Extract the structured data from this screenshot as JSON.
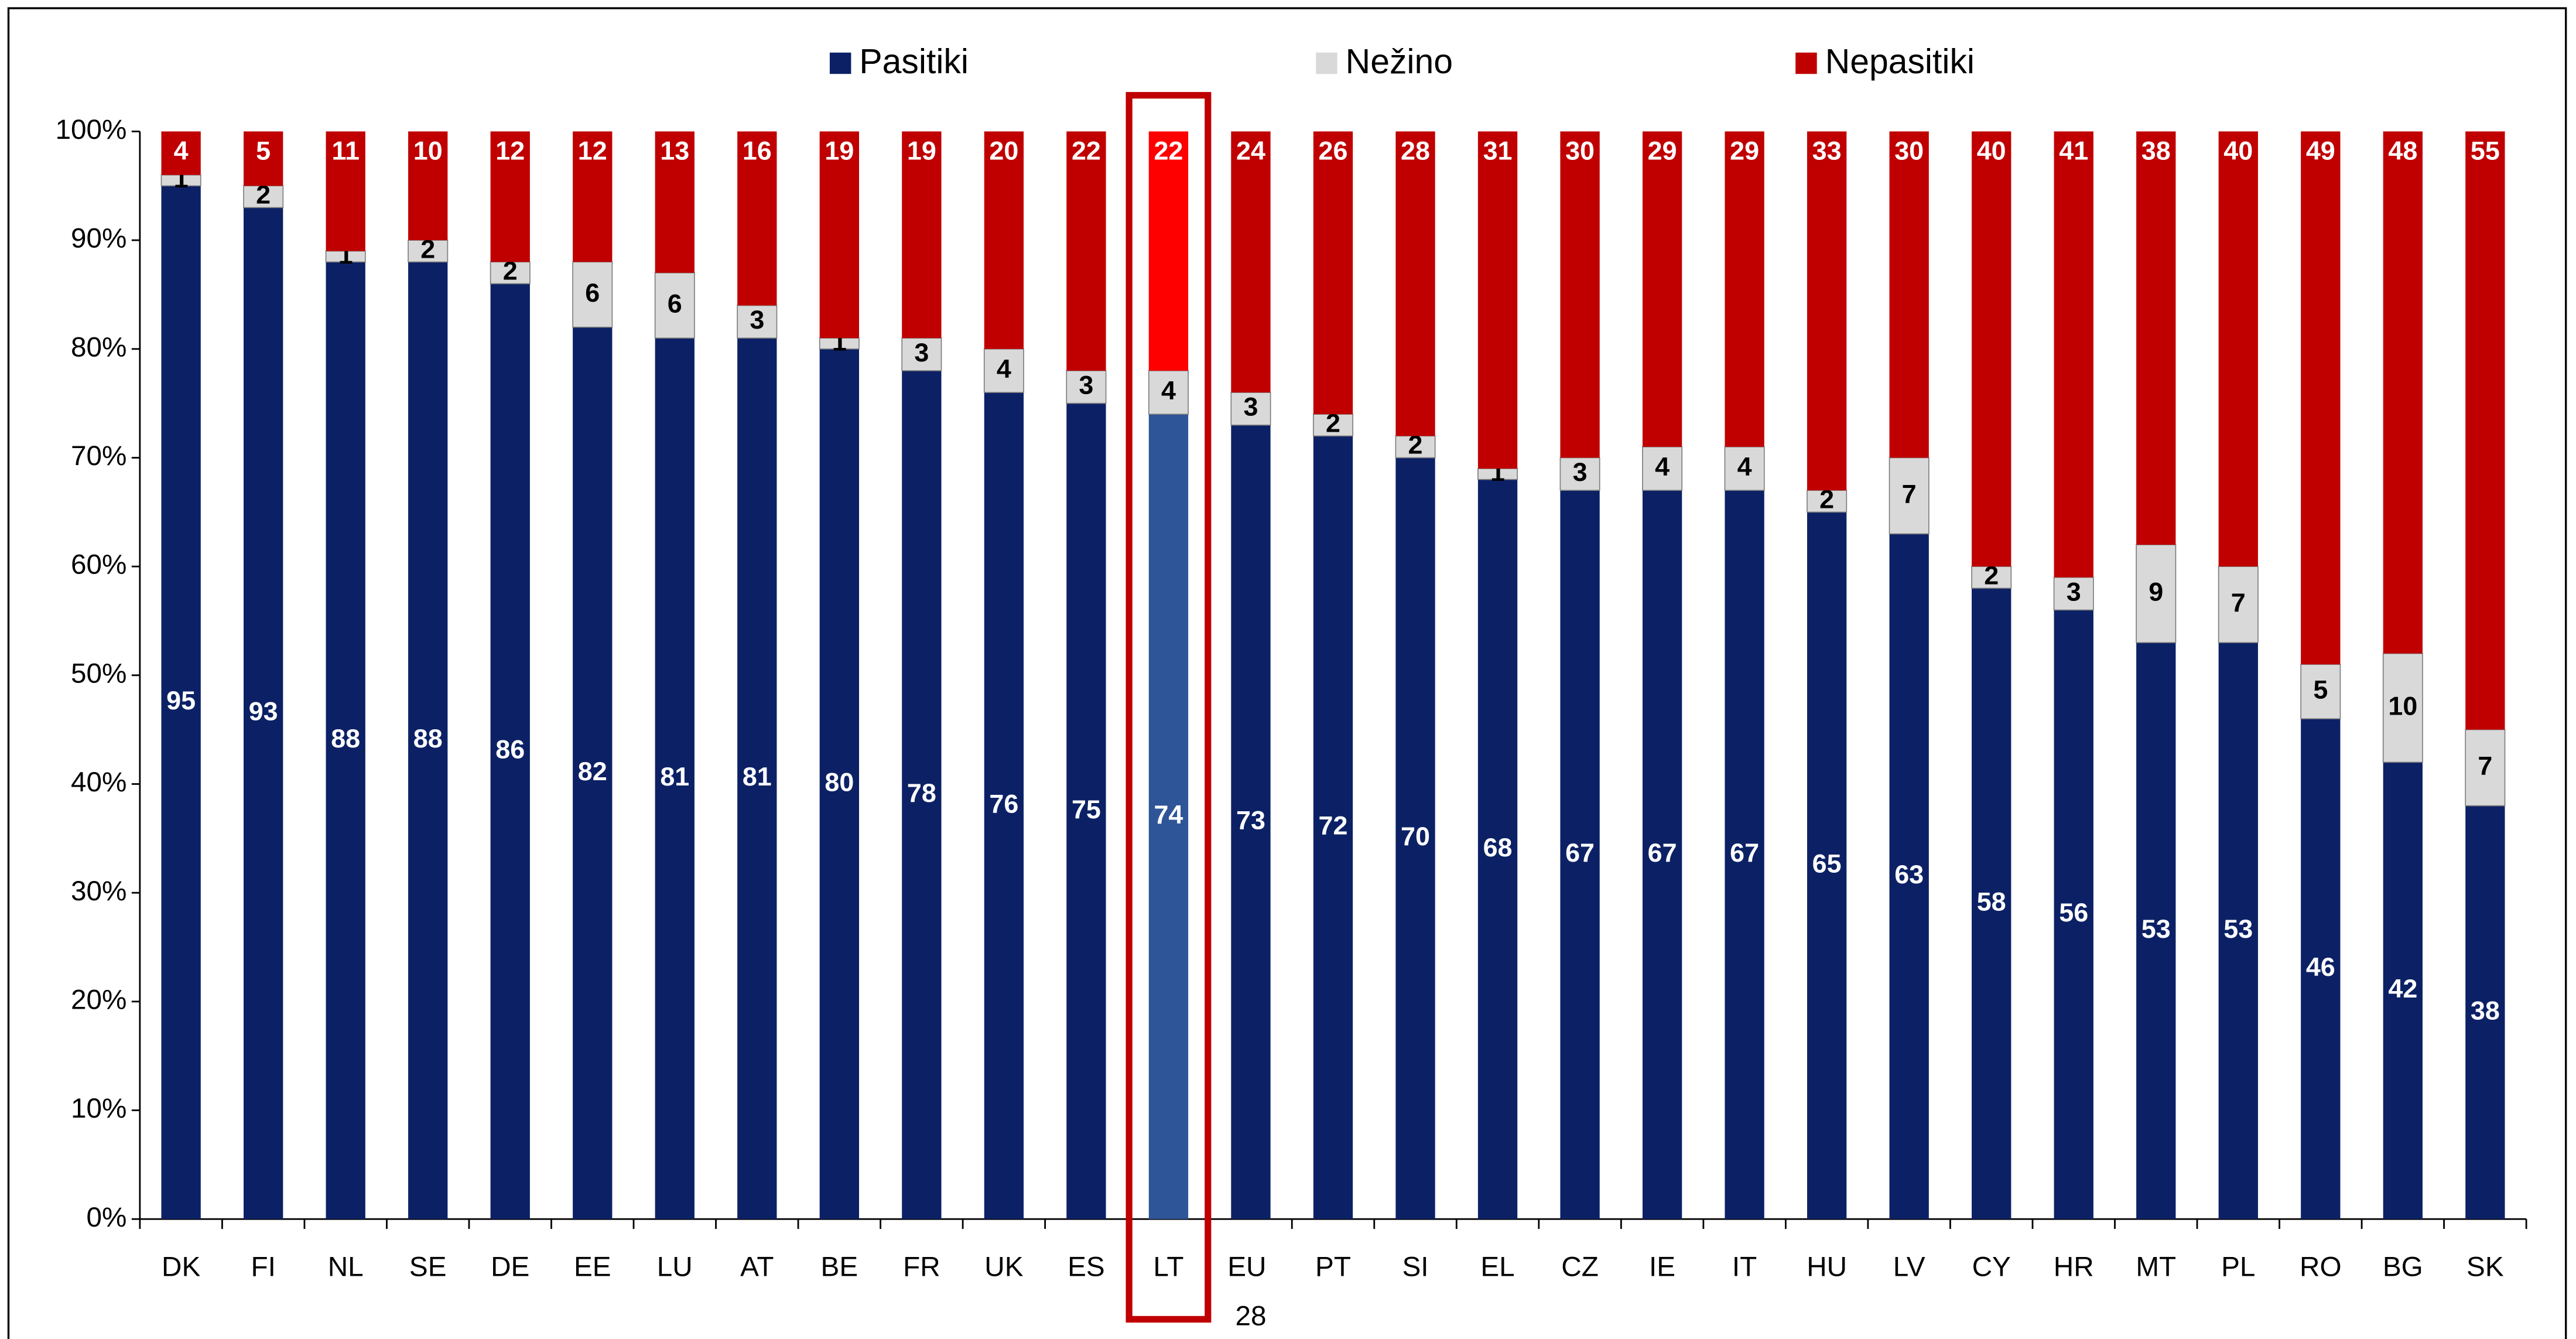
{
  "chart_data": {
    "type": "stacked_bar_percent",
    "categories": [
      "DK",
      "FI",
      "NL",
      "SE",
      "DE",
      "EE",
      "LU",
      "AT",
      "BE",
      "FR",
      "UK",
      "ES",
      "LT",
      "EU 28",
      "PT",
      "SI",
      "EL",
      "CZ",
      "IE",
      "IT",
      "HU",
      "LV",
      "CY",
      "HR",
      "MT",
      "PL",
      "RO",
      "BG",
      "SK"
    ],
    "series": [
      {
        "name": "Pasitiki",
        "color": "#0c2165",
        "highlight_color": "#2e5597",
        "label_color": "#ffffff",
        "values": [
          95,
          93,
          88,
          88,
          86,
          82,
          81,
          81,
          80,
          78,
          76,
          75,
          74,
          73,
          72,
          70,
          68,
          67,
          67,
          67,
          65,
          63,
          58,
          56,
          53,
          53,
          46,
          42,
          38
        ]
      },
      {
        "name": "Nežino",
        "color": "#d9d9d9",
        "highlight_color": "#d9d9d9",
        "label_color": "#000000",
        "values": [
          1,
          2,
          1,
          2,
          2,
          6,
          6,
          3,
          1,
          3,
          4,
          3,
          4,
          3,
          2,
          2,
          1,
          3,
          4,
          4,
          2,
          7,
          2,
          3,
          9,
          7,
          5,
          10,
          7
        ]
      },
      {
        "name": "Nepasitiki",
        "color": "#c00000",
        "highlight_color": "#ff0000",
        "label_color": "#ffffff",
        "values": [
          4,
          5,
          11,
          10,
          12,
          12,
          13,
          16,
          19,
          19,
          20,
          22,
          22,
          24,
          26,
          28,
          31,
          30,
          29,
          29,
          33,
          30,
          40,
          41,
          38,
          40,
          49,
          48,
          55
        ]
      }
    ],
    "highlight_category": "LT",
    "highlight_box_color": "#c00000",
    "ylim": [
      0,
      100
    ],
    "yticks": [
      {
        "value": 0,
        "label": "0%"
      },
      {
        "value": 10,
        "label": "10%"
      },
      {
        "value": 20,
        "label": "20%"
      },
      {
        "value": 30,
        "label": "30%"
      },
      {
        "value": 40,
        "label": "40%"
      },
      {
        "value": 50,
        "label": "50%"
      },
      {
        "value": 60,
        "label": "60%"
      },
      {
        "value": 70,
        "label": "70%"
      },
      {
        "value": 80,
        "label": "80%"
      },
      {
        "value": 90,
        "label": "90%"
      },
      {
        "value": 100,
        "label": "100%"
      }
    ],
    "grid": false,
    "legend": "top"
  }
}
